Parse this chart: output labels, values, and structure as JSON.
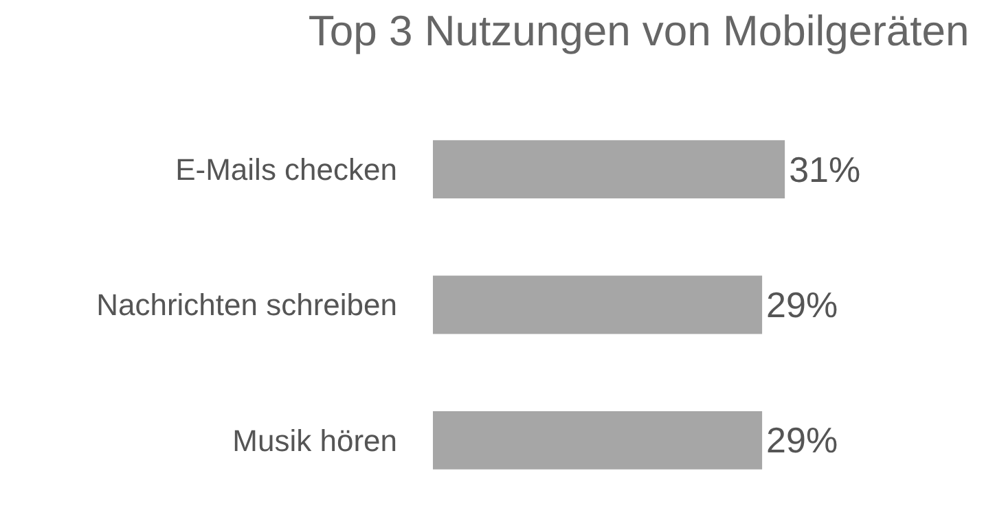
{
  "chart_data": {
    "type": "bar",
    "orientation": "horizontal",
    "title": "Top 3 Nutzungen von Mobilgeräten",
    "categories": [
      "E-Mails checken",
      "Nachrichten schreiben",
      "Musik hören"
    ],
    "values": [
      31,
      29,
      29
    ],
    "value_labels": [
      "31%",
      "29%",
      "29%"
    ],
    "color": "#a6a6a6"
  }
}
